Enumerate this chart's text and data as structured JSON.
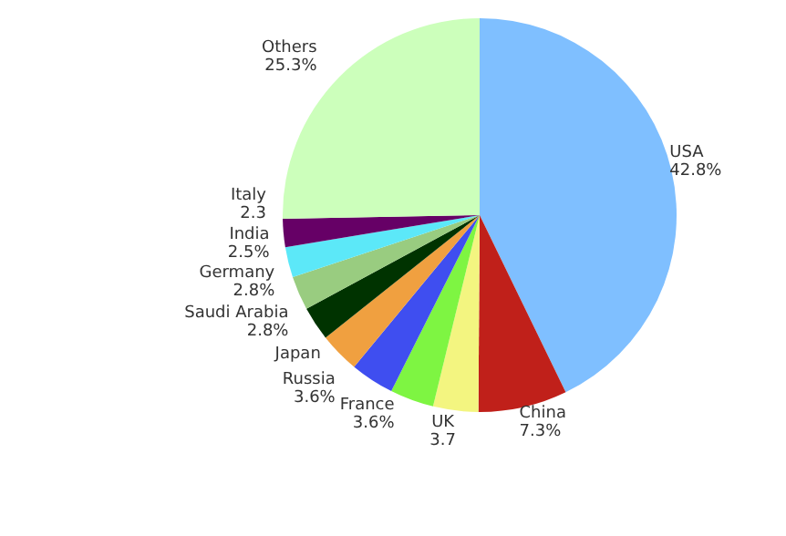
{
  "chart_data": {
    "type": "pie",
    "categories": [
      "USA",
      "China",
      "UK",
      "France",
      "Russia",
      "Japan",
      "Saudi Arabia",
      "Germany",
      "India",
      "Italy",
      "Others"
    ],
    "values": [
      42.8,
      7.3,
      3.7,
      3.6,
      3.6,
      3.3,
      2.8,
      2.8,
      2.5,
      2.3,
      25.3
    ],
    "value_labels": [
      "42.8%",
      "7.3%",
      "3.7",
      "3.6%",
      "3.6%",
      null,
      "2.8%",
      "2.8%",
      "2.5%",
      "2.3",
      "25.3%"
    ],
    "colors": [
      "#7fbfff",
      "#c0201a",
      "#f3f580",
      "#7ef542",
      "#3f4ef0",
      "#f0a040",
      "#003300",
      "#99cc80",
      "#5ce8f8",
      "#660066",
      "#ccffbb"
    ],
    "legend": false
  }
}
